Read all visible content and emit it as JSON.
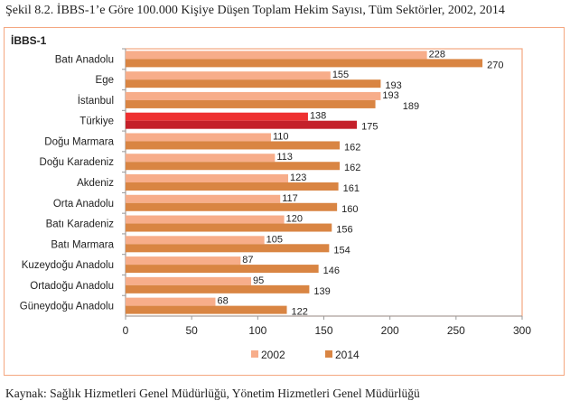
{
  "title": "Şekil 8.2. İBBS-1’e Göre 100.000 Kişiye Düşen Toplam Hekim Sayısı, Tüm Sektörler, 2002, 2014",
  "source": "Kaynak: Sağlık Hizmetleri Genel Müdürlüğü, Yönetim Hizmetleri Genel Müdürlüğü",
  "chart_data": {
    "type": "bar",
    "orientation": "horizontal",
    "title": "İBBS-1",
    "categories": [
      "Batı Anadolu",
      "Ege",
      "İstanbul",
      "Türkiye",
      "Doğu Marmara",
      "Doğu Karadeniz",
      "Akdeniz",
      "Orta Anadolu",
      "Batı Karadeniz",
      "Batı Marmara",
      "Kuzeydoğu Anadolu",
      "Ortadoğu Anadolu",
      "Güneydoğu Anadolu"
    ],
    "series": [
      {
        "name": "2002",
        "color": "#f7ad8a",
        "highlight_color": "#ee3030",
        "values": [
          228,
          155,
          193,
          138,
          110,
          113,
          123,
          117,
          120,
          105,
          87,
          95,
          68
        ]
      },
      {
        "name": "2014",
        "color": "#d98543",
        "highlight_color": "#c4202a",
        "values": [
          270,
          193,
          189,
          175,
          162,
          162,
          161,
          160,
          156,
          154,
          146,
          139,
          122
        ]
      }
    ],
    "highlight_category": "Türkiye",
    "xlim": [
      0,
      300
    ],
    "xticks": [
      0,
      50,
      100,
      150,
      200,
      250,
      300
    ],
    "legend": "bottom",
    "grid": false,
    "frame_color": "#f4a780"
  }
}
